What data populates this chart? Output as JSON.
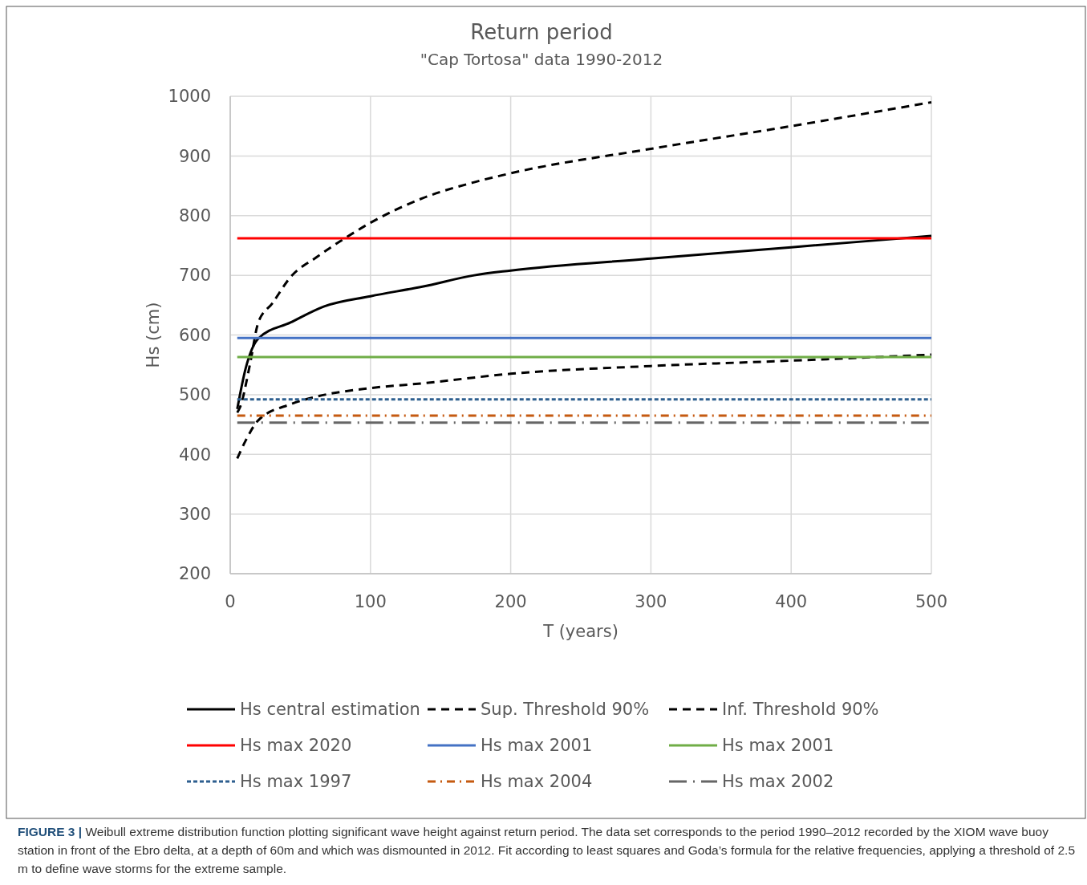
{
  "chart_data": {
    "type": "line",
    "title": "Return period",
    "subtitle": "\"Cap Tortosa\" data 1990-2012",
    "xlabel": "T (years)",
    "ylabel": "Hs (cm)",
    "xlim": [
      0,
      500
    ],
    "xticks": [
      0,
      100,
      200,
      300,
      400,
      500
    ],
    "ylim": [
      200,
      1000
    ],
    "yticks": [
      200,
      300,
      400,
      500,
      600,
      700,
      800,
      900,
      1000
    ],
    "grid": true,
    "legend": "bottom",
    "marker": "none",
    "series": [
      {
        "name": "Hs central estimation",
        "color": "#000000",
        "line_style": "solid",
        "x": [
          5,
          11,
          20,
          43,
          67,
          100,
          137,
          174,
          200,
          300,
          400,
          500
        ],
        "values": [
          476,
          544,
          594,
          621,
          648,
          665,
          681,
          700,
          708,
          728,
          747,
          766
        ]
      },
      {
        "name": "Sup. Threshold 90%",
        "color": "#000000",
        "line_style": "dashed",
        "x": [
          5,
          7,
          14,
          20,
          30,
          43,
          62,
          81,
          100,
          137,
          174,
          200,
          300,
          400,
          500
        ],
        "values": [
          470,
          479,
          550,
          621,
          653,
          697,
          731,
          761,
          788,
          829,
          856,
          871,
          912,
          950,
          990
        ]
      },
      {
        "name": "Inf. Threshold 90%",
        "color": "#000000",
        "line_style": "dashed",
        "x": [
          5,
          11,
          20,
          43,
          62,
          100,
          137,
          200,
          300,
          400,
          500
        ],
        "values": [
          393,
          423,
          457,
          484,
          497,
          511,
          519,
          535,
          548,
          557,
          567
        ]
      },
      {
        "name": "Hs max 2020",
        "color": "#ff0000",
        "line_style": "solid",
        "x": [
          5,
          500
        ],
        "values": [
          762,
          762
        ]
      },
      {
        "name": "Hs max 2001",
        "color": "#4472c4",
        "line_style": "solid",
        "x": [
          5,
          500
        ],
        "values": [
          595,
          595
        ]
      },
      {
        "name": "Hs max 2001",
        "color": "#70ad47",
        "line_style": "solid",
        "x": [
          5,
          500
        ],
        "values": [
          563,
          563
        ]
      },
      {
        "name": "Hs max 1997",
        "color": "#2e5f8f",
        "line_style": "dotted",
        "x": [
          5,
          500
        ],
        "values": [
          492,
          492
        ]
      },
      {
        "name": "Hs max 2004",
        "color": "#c55a11",
        "line_style": "dashdot",
        "x": [
          5,
          500
        ],
        "values": [
          465,
          465
        ]
      },
      {
        "name": "Hs max 2002",
        "color": "#666666",
        "line_style": "longdashdot",
        "x": [
          5,
          500
        ],
        "values": [
          453,
          453
        ]
      }
    ],
    "annotations": [
      "FIGURE 3 | Weibull extreme distribution function plotting significant wave height against return period. The data set corresponds to the period 1990–2012 recorded by the XIOM wave buoy station in front of the Ebro delta, at a depth of 60m and which was dismounted in 2012. Fit according to least squares and Goda’s formula for the relative frequencies, applying a threshold of 2.5 m to define wave storms for the extreme sample."
    ]
  }
}
